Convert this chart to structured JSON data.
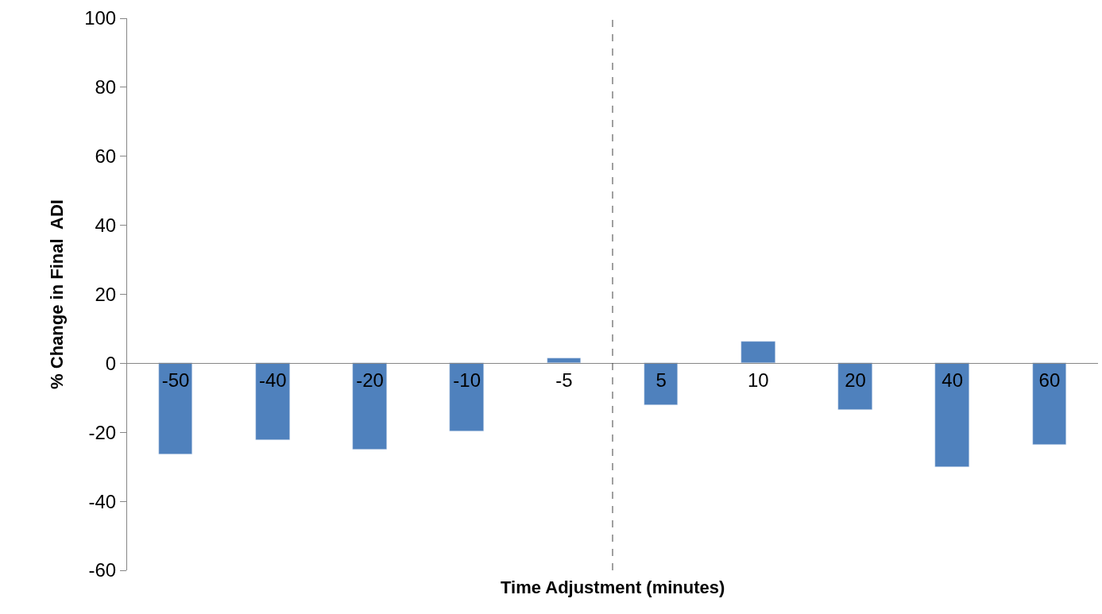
{
  "chart_data": {
    "type": "bar",
    "xlabel": "Time Adjustment (minutes)",
    "ylabel": "% Change in Final  ADI",
    "categories": [
      "-50",
      "-40",
      "-20",
      "-10",
      "-5",
      "5",
      "10",
      "20",
      "40",
      "60"
    ],
    "series": [
      {
        "color": "#4f81bd",
        "values": [
          -26.5,
          -22.3,
          -25.1,
          -19.6,
          1.4,
          -12.0,
          6.2,
          -13.4,
          -30.0,
          -23.7
        ]
      }
    ],
    "ylim": [
      -60,
      100
    ],
    "yticks": [
      -60,
      -40,
      -20,
      0,
      20,
      40,
      60,
      80,
      100
    ]
  }
}
